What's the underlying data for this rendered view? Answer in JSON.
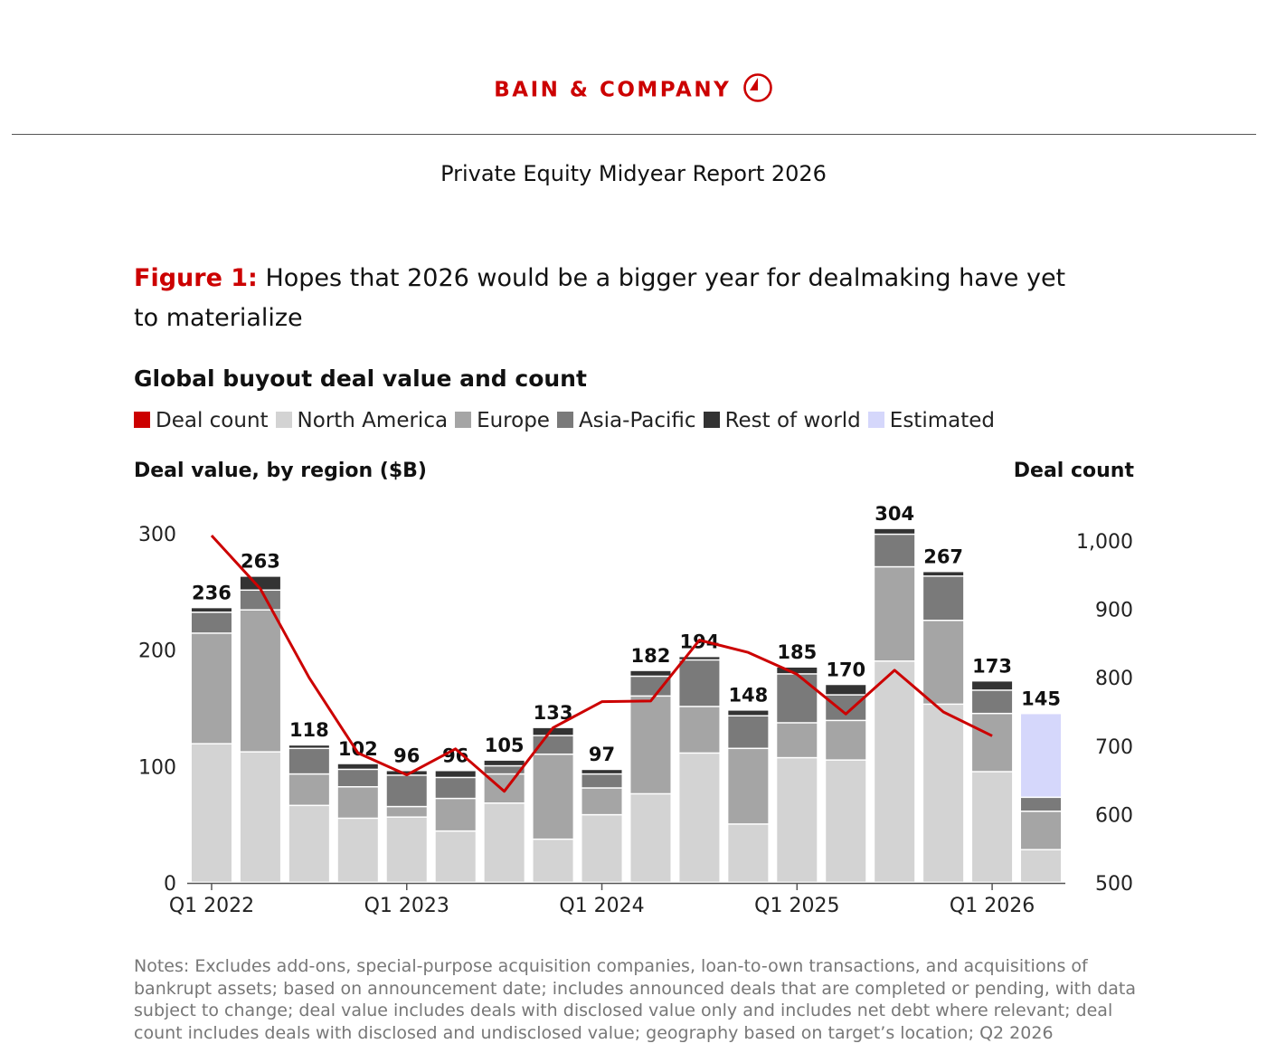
{
  "brand": {
    "name": "BAIN & COMPANY"
  },
  "report_title": "Private Equity Midyear Report 2026",
  "figure": {
    "label": "Figure 1:",
    "title": "Hopes that 2026 would be a bigger year for dealmaking have yet to materialize"
  },
  "notes": "Notes: Excludes add-ons, special-purpose acquisition companies, loan-to-own transactions, and acquisitions of bankrupt assets; based on announcement date; includes announced deals that are completed or pending, with data subject to change; deal value includes deals with disclosed value only and includes net debt where relevant; deal count includes deals with disclosed and undisclosed value; geography based on target’s location; Q2 2026",
  "chart_data": {
    "type": "bar",
    "title": "Global buyout deal value and count",
    "ylabel": "Deal value, by region ($B)",
    "y2label": "Deal count",
    "ylim": [
      0,
      300
    ],
    "y2lim": [
      500,
      1000
    ],
    "yticks": [
      "0",
      "100",
      "200",
      "300"
    ],
    "y2ticks": [
      "500",
      "600",
      "700",
      "800",
      "900",
      "1,000"
    ],
    "xtick_labels": [
      {
        "index": 0,
        "label": "Q1 2022"
      },
      {
        "index": 4,
        "label": "Q1 2023"
      },
      {
        "index": 8,
        "label": "Q1 2024"
      },
      {
        "index": 12,
        "label": "Q1 2025"
      },
      {
        "index": 16,
        "label": "Q1 2026"
      }
    ],
    "categories": [
      "Q1 2022",
      "Q2 2022",
      "Q3 2022",
      "Q4 2022",
      "Q1 2023",
      "Q2 2023",
      "Q3 2023",
      "Q4 2023",
      "Q1 2024",
      "Q2 2024",
      "Q3 2024",
      "Q4 2024",
      "Q1 2025",
      "Q2 2025",
      "Q3 2025",
      "Q4 2025",
      "Q1 2026",
      "Q2 2026"
    ],
    "totals": [
      "236",
      "263",
      "118",
      "102",
      "96",
      "96",
      "105",
      "133",
      "97",
      "182",
      "194",
      "148",
      "185",
      "170",
      "304",
      "267",
      "173",
      "145"
    ],
    "legend": [
      {
        "name": "Deal count",
        "color": "#cc0000"
      },
      {
        "name": "North America",
        "color": "#d3d3d3"
      },
      {
        "name": "Europe",
        "color": "#a5a5a5"
      },
      {
        "name": "Asia-Pacific",
        "color": "#7a7a7a"
      },
      {
        "name": "Rest of world",
        "color": "#333333"
      },
      {
        "name": "Estimated",
        "color": "#d5d7fb"
      }
    ],
    "series": [
      {
        "name": "North America",
        "color": "#d3d3d3",
        "values": [
          119,
          112,
          66,
          55,
          56,
          44,
          68,
          37,
          58,
          76,
          111,
          50,
          107,
          105,
          190,
          153,
          95,
          28
        ]
      },
      {
        "name": "Europe",
        "color": "#a5a5a5",
        "values": [
          95,
          122,
          27,
          27,
          9,
          28,
          25,
          73,
          23,
          84,
          40,
          65,
          30,
          34,
          81,
          72,
          50,
          33
        ]
      },
      {
        "name": "Asia-Pacific",
        "color": "#7a7a7a",
        "values": [
          18,
          17,
          22,
          15,
          27,
          18,
          7,
          16,
          12,
          17,
          40,
          28,
          42,
          22,
          28,
          38,
          20,
          12
        ]
      },
      {
        "name": "Rest of world",
        "color": "#333333",
        "values": [
          4,
          12,
          3,
          5,
          4,
          6,
          5,
          7,
          4,
          5,
          3,
          5,
          6,
          9,
          5,
          4,
          8,
          0
        ]
      },
      {
        "name": "Estimated",
        "color": "#d5d7fb",
        "values": [
          0,
          0,
          0,
          0,
          0,
          0,
          0,
          0,
          0,
          0,
          0,
          0,
          0,
          0,
          0,
          0,
          0,
          72
        ]
      }
    ],
    "line": {
      "name": "Deal count",
      "color": "#cc0000",
      "axis": "right",
      "values": [
        1008,
        930,
        800,
        690,
        658,
        696,
        634,
        727,
        765,
        766,
        855,
        837,
        805,
        747,
        811,
        750,
        715,
        null
      ]
    }
  }
}
